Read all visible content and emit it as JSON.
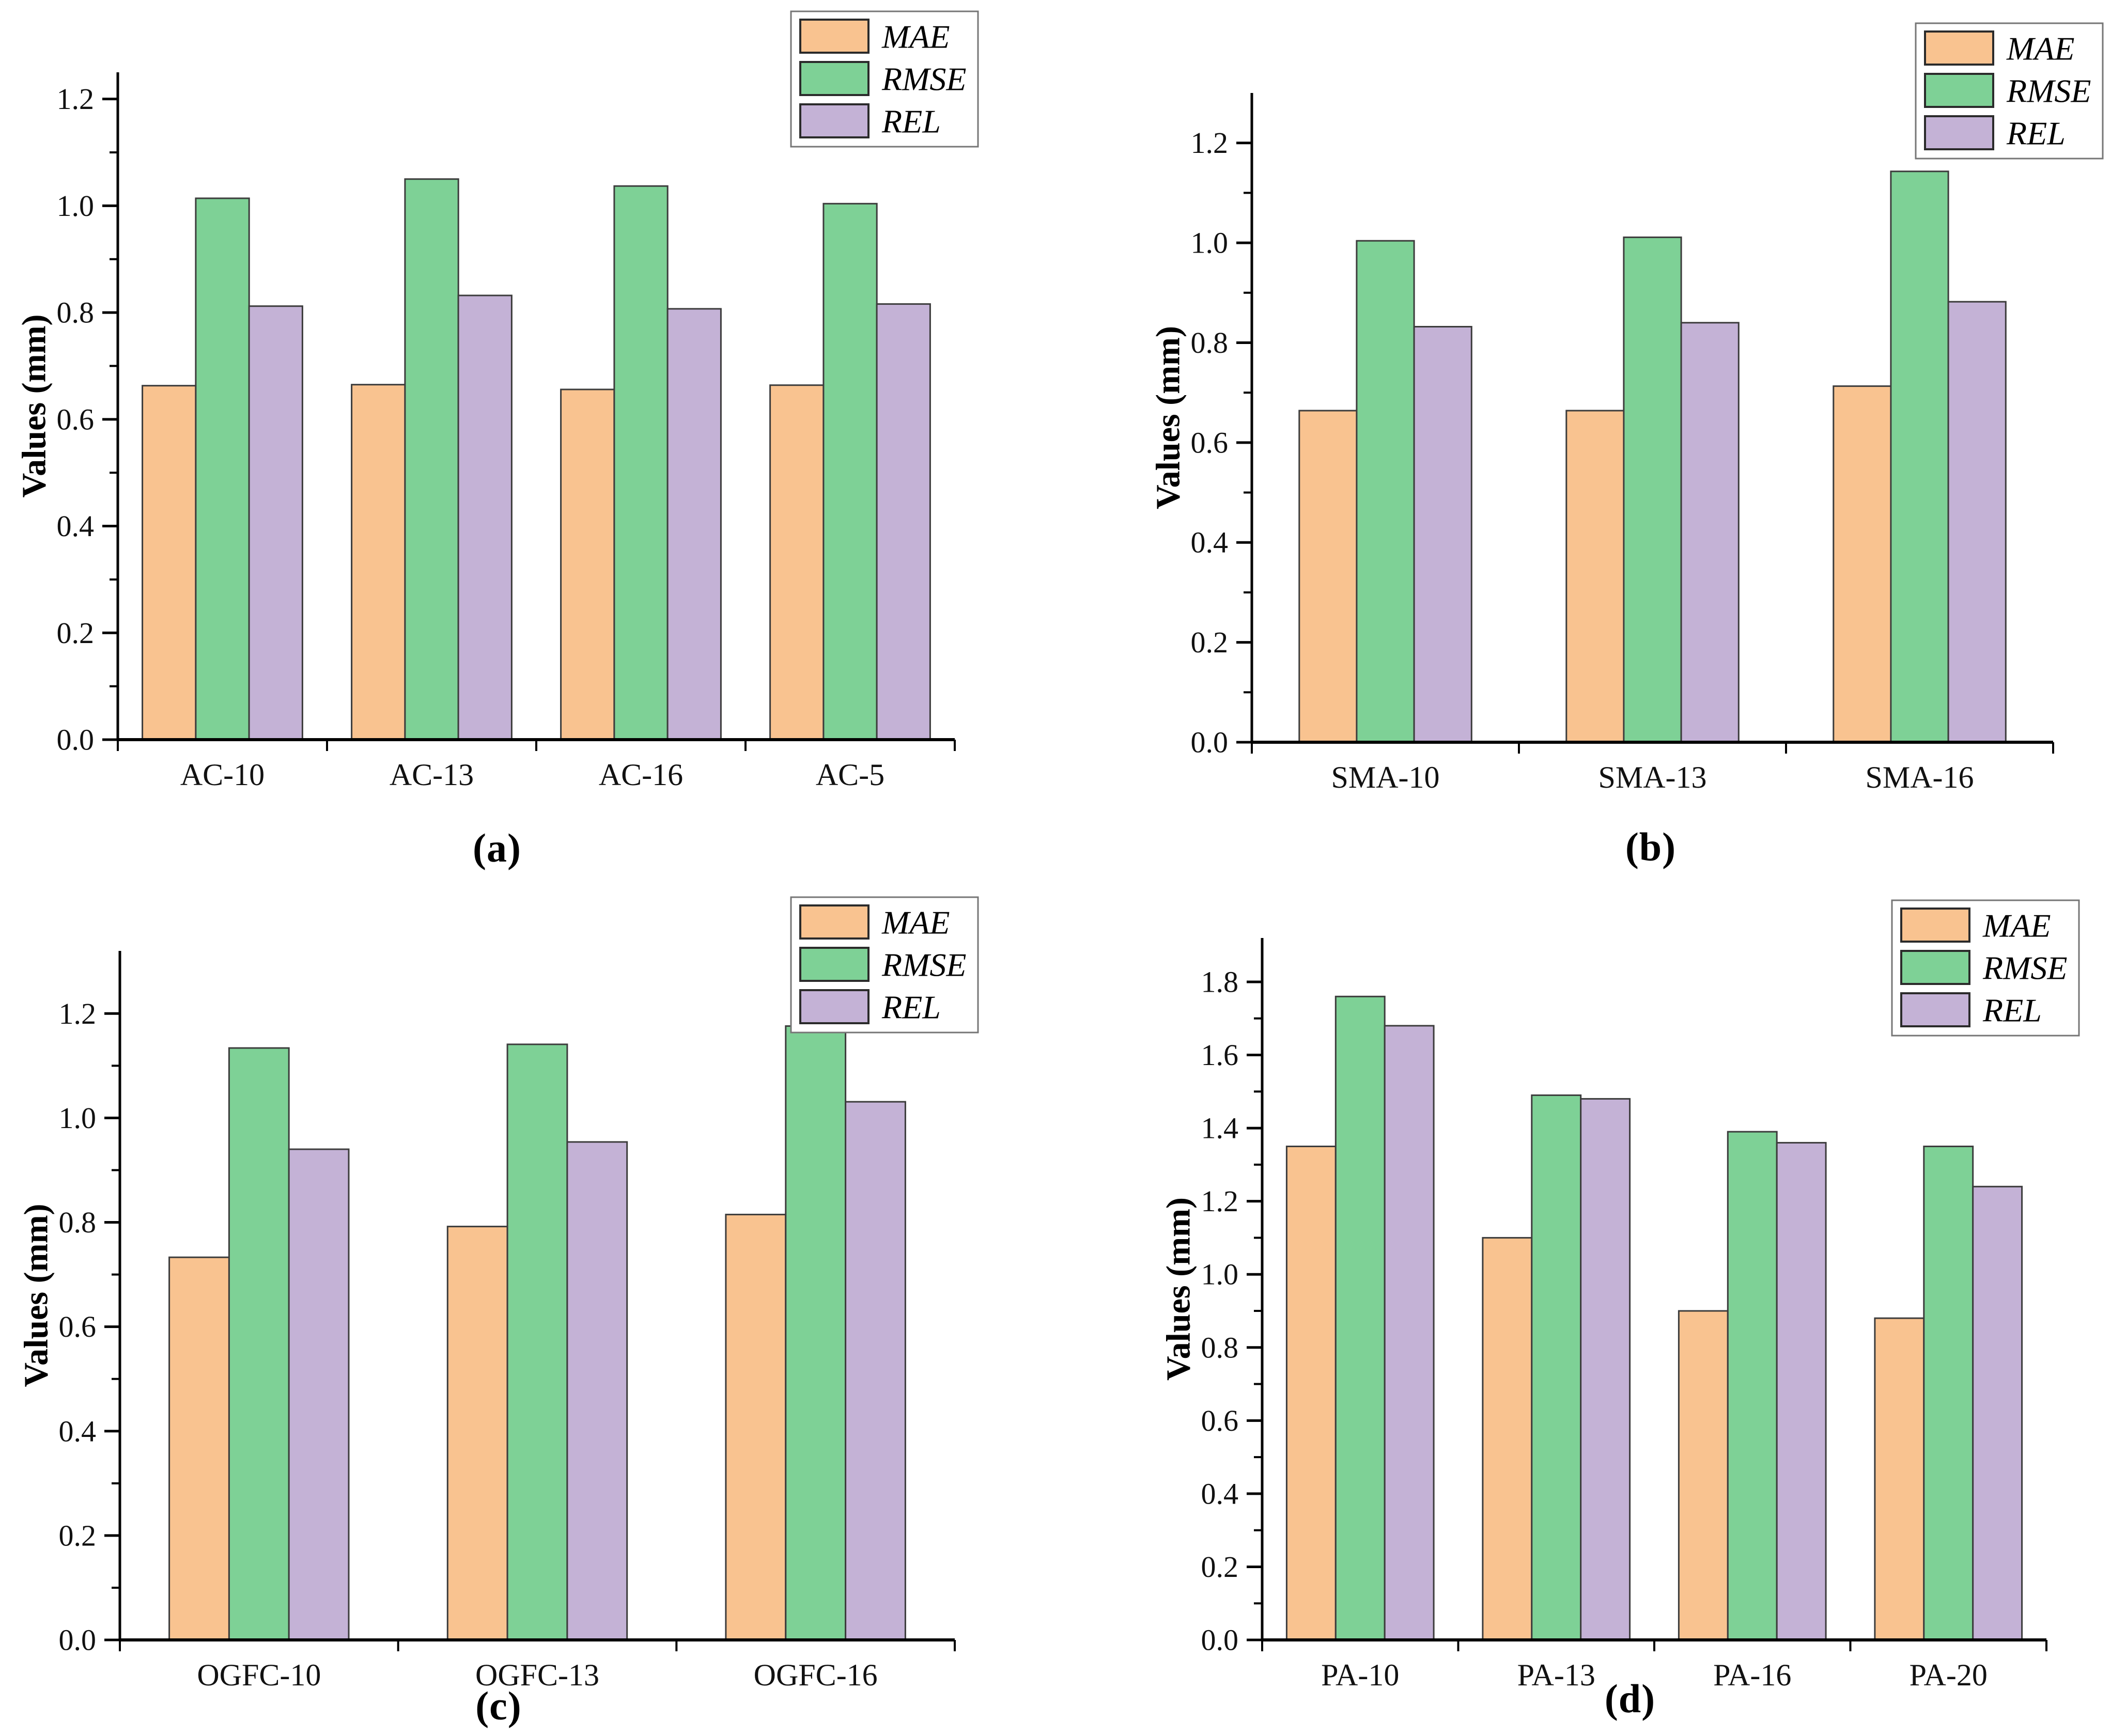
{
  "figure": {
    "background_color": "#ffffff",
    "axis_color": "#000000",
    "tick_label_color": "#111111",
    "bar_border_color": "#3c3c3c",
    "legend_border_color": "#767676",
    "series_colors": {
      "MAE": "#f9c390",
      "RMSE": "#7ed196",
      "REL": "#c4b2d6"
    },
    "legend_labels": [
      "MAE",
      "RMSE",
      "REL"
    ]
  },
  "chart_data": [
    {
      "panel": "a",
      "caption": "(a)",
      "type": "bar",
      "title": "",
      "xlabel": "",
      "ylabel": "Values（mm）",
      "categories": [
        "AC-10",
        "AC-13",
        "AC-16",
        "AC-5"
      ],
      "series": [
        {
          "name": "MAE",
          "values": [
            0.663,
            0.665,
            0.656,
            0.664
          ]
        },
        {
          "name": "RMSE",
          "values": [
            1.014,
            1.05,
            1.037,
            1.004
          ]
        },
        {
          "name": "REL",
          "values": [
            0.812,
            0.832,
            0.807,
            0.816
          ]
        }
      ],
      "ylim": [
        0,
        1.25
      ],
      "yticks": [
        0.0,
        0.2,
        0.4,
        0.6,
        0.8,
        1.0,
        1.2
      ],
      "minor_tick_step": 0.1,
      "grid": false,
      "legend_position": "top-right"
    },
    {
      "panel": "b",
      "caption": "(b)",
      "type": "bar",
      "title": "",
      "xlabel": "",
      "ylabel": "Values（mm）",
      "categories": [
        "SMA-10",
        "SMA-13",
        "SMA-16"
      ],
      "series": [
        {
          "name": "MAE",
          "values": [
            0.664,
            0.664,
            0.713
          ]
        },
        {
          "name": "RMSE",
          "values": [
            1.004,
            1.011,
            1.143
          ]
        },
        {
          "name": "REL",
          "values": [
            0.832,
            0.84,
            0.882
          ]
        }
      ],
      "ylim": [
        0,
        1.3
      ],
      "yticks": [
        0.0,
        0.2,
        0.4,
        0.6,
        0.8,
        1.0,
        1.2
      ],
      "minor_tick_step": 0.1,
      "grid": false,
      "legend_position": "top-right"
    },
    {
      "panel": "c",
      "caption": "(c)",
      "type": "bar",
      "title": "",
      "xlabel": "",
      "ylabel": "Values（mm）",
      "categories": [
        "OGFC-10",
        "OGFC-13",
        "OGFC-16"
      ],
      "series": [
        {
          "name": "MAE",
          "values": [
            0.733,
            0.792,
            0.815
          ]
        },
        {
          "name": "RMSE",
          "values": [
            1.134,
            1.141,
            1.176
          ]
        },
        {
          "name": "REL",
          "values": [
            0.94,
            0.954,
            1.031
          ]
        }
      ],
      "ylim": [
        0,
        1.32
      ],
      "yticks": [
        0.0,
        0.2,
        0.4,
        0.6,
        0.8,
        1.0,
        1.2
      ],
      "minor_tick_step": 0.1,
      "grid": false,
      "legend_position": "top-right"
    },
    {
      "panel": "d",
      "caption": "(d)",
      "type": "bar",
      "title": "",
      "xlabel": "",
      "ylabel": "Values（mm）",
      "categories": [
        "PA-10",
        "PA-13",
        "PA-16",
        "PA-20"
      ],
      "series": [
        {
          "name": "MAE",
          "values": [
            1.35,
            1.1,
            0.9,
            0.88
          ]
        },
        {
          "name": "RMSE",
          "values": [
            1.76,
            1.49,
            1.39,
            1.35
          ]
        },
        {
          "name": "REL",
          "values": [
            1.68,
            1.48,
            1.36,
            1.24
          ]
        }
      ],
      "ylim": [
        0,
        1.92
      ],
      "yticks": [
        0.0,
        0.2,
        0.4,
        0.6,
        0.8,
        1.0,
        1.2,
        1.4,
        1.6,
        1.8
      ],
      "minor_tick_step": 0.1,
      "grid": false,
      "legend_position": "top-right"
    }
  ]
}
